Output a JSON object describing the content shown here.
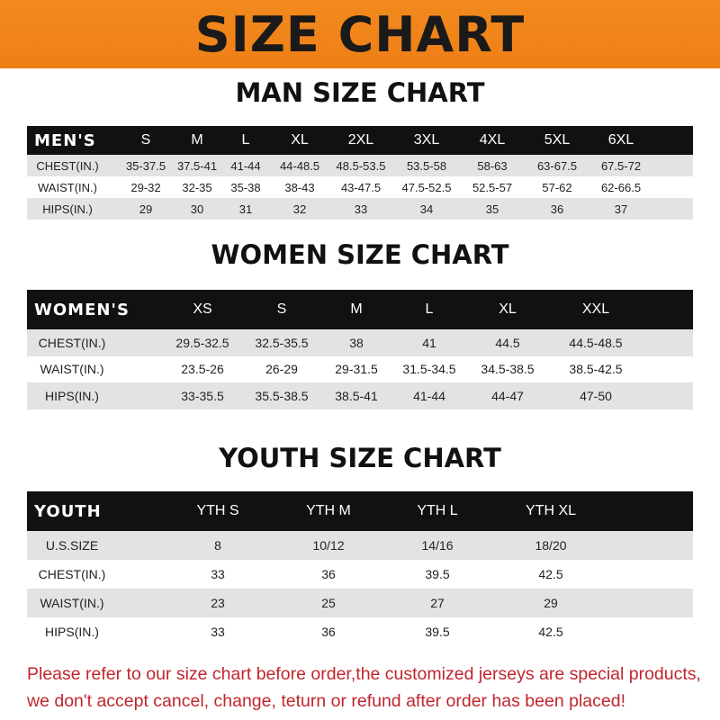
{
  "banner": {
    "title": "SIZE CHART"
  },
  "men": {
    "title": "MAN SIZE CHART",
    "header": [
      "MEN'S",
      "S",
      "M",
      "L",
      "XL",
      "2XL",
      "3XL",
      "4XL",
      "5XL",
      "6XL"
    ],
    "rows": [
      [
        "CHEST(IN.)",
        "35-37.5",
        "37.5-41",
        "41-44",
        "44-48.5",
        "48.5-53.5",
        "53.5-58",
        "58-63",
        "63-67.5",
        "67.5-72"
      ],
      [
        "WAIST(IN.)",
        "29-32",
        "32-35",
        "35-38",
        "38-43",
        "43-47.5",
        "47.5-52.5",
        "52.5-57",
        "57-62",
        "62-66.5"
      ],
      [
        "HIPS(IN.)",
        "29",
        "30",
        "31",
        "32",
        "33",
        "34",
        "35",
        "36",
        "37"
      ]
    ]
  },
  "women": {
    "title": "WOMEN SIZE CHART",
    "header": [
      "WOMEN'S",
      "XS",
      "S",
      "M",
      "L",
      "XL",
      "XXL"
    ],
    "rows": [
      [
        "CHEST(IN.)",
        "29.5-32.5",
        "32.5-35.5",
        "38",
        "41",
        "44.5",
        "44.5-48.5"
      ],
      [
        "WAIST(IN.)",
        "23.5-26",
        "26-29",
        "29-31.5",
        "31.5-34.5",
        "34.5-38.5",
        "38.5-42.5"
      ],
      [
        "HIPS(IN.)",
        "33-35.5",
        "35.5-38.5",
        "38.5-41",
        "41-44",
        "44-47",
        "47-50"
      ]
    ]
  },
  "youth": {
    "title": "YOUTH SIZE CHART",
    "header": [
      "YOUTH",
      "YTH S",
      "YTH M",
      "YTH L",
      "YTH XL"
    ],
    "rows": [
      [
        "U.S.SIZE",
        "8",
        "10/12",
        "14/16",
        "18/20"
      ],
      [
        "CHEST(IN.)",
        "33",
        "36",
        "39.5",
        "42.5"
      ],
      [
        "WAIST(IN.)",
        "23",
        "25",
        "27",
        "29"
      ],
      [
        "HIPS(IN.)",
        "33",
        "36",
        "39.5",
        "42.5"
      ]
    ]
  },
  "footer": {
    "line1": "Please refer to our size chart before order,the customized jerseys are special products,",
    "line2": "we don't accept cancel, change, teturn or refund after order has been placed!"
  }
}
